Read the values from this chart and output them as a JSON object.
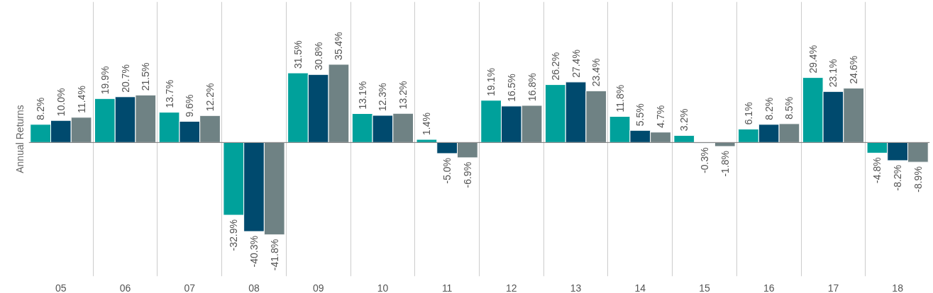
{
  "chart_data": {
    "type": "bar",
    "ylabel": "Annual Returns",
    "categories": [
      "05",
      "06",
      "07",
      "08",
      "09",
      "10",
      "11",
      "12",
      "13",
      "14",
      "15",
      "16",
      "17",
      "18"
    ],
    "series": [
      {
        "color": "#00a19b",
        "values": [
          8.2,
          19.9,
          13.7,
          -32.9,
          31.5,
          13.1,
          1.4,
          19.1,
          26.2,
          11.8,
          3.2,
          6.1,
          29.4,
          -4.8
        ],
        "value_labels": [
          "8.2%",
          "19.9%",
          "13.7%",
          "-32.9%",
          "31.5%",
          "13.1%",
          "1.4%",
          "19.1%",
          "26.2%",
          "11.8%",
          "3.2%",
          "6.1%",
          "29.4%",
          "-4.8%"
        ]
      },
      {
        "color": "#004a6e",
        "values": [
          10.0,
          20.7,
          9.6,
          -40.3,
          30.8,
          12.3,
          -5.0,
          16.5,
          27.4,
          5.5,
          -0.3,
          8.2,
          23.1,
          -8.2
        ],
        "value_labels": [
          "10.0%",
          "20.7%",
          "9.6%",
          "-40.3%",
          "30.8%",
          "12.3%",
          "-5.0%",
          "16.5%",
          "27.4%",
          "5.5%",
          "-0.3%",
          "8.2%",
          "23.1%",
          "-8.2%"
        ]
      },
      {
        "color": "#6f8284",
        "values": [
          11.4,
          21.5,
          12.2,
          -41.8,
          35.4,
          13.2,
          -6.9,
          16.8,
          23.4,
          4.7,
          -1.8,
          8.5,
          24.6,
          -8.9
        ],
        "value_labels": [
          "11.4%",
          "21.5%",
          "12.2%",
          "-41.8%",
          "35.4%",
          "13.2%",
          "-6.9%",
          "16.8%",
          "23.4%",
          "4.7%",
          "-1.8%",
          "8.5%",
          "24.6%",
          "-8.9%"
        ]
      }
    ],
    "grid": "x"
  }
}
